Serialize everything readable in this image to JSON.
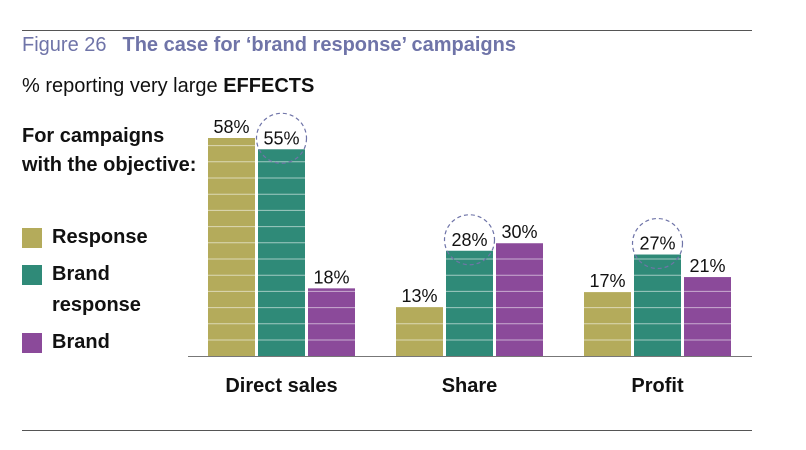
{
  "header": {
    "figure_label": "Figure 26",
    "title": "The case for ‘brand response’ campaigns",
    "subtitle_prefix": "% reporting very large ",
    "subtitle_bold": "EFFECTS"
  },
  "legend": {
    "title": "For campaigns with the objective:",
    "items": [
      {
        "label": "Response",
        "color": "#b4ab5b"
      },
      {
        "label": "Brand response",
        "color": "#2f8a78"
      },
      {
        "label": "Brand",
        "color": "#8b4a9a"
      }
    ]
  },
  "chart_data": {
    "type": "bar",
    "title": "The case for ‘brand response’ campaigns",
    "ylabel": "% reporting very large EFFECTS",
    "categories": [
      "Direct sales",
      "Share",
      "Profit"
    ],
    "series": [
      {
        "name": "Response",
        "values": [
          58,
          13,
          17
        ],
        "labels": [
          "58%",
          "13%",
          "17%"
        ],
        "color": "#b4ab5b"
      },
      {
        "name": "Brand response",
        "values": [
          55,
          28,
          27
        ],
        "labels": [
          "55%",
          "28%",
          "27%"
        ],
        "color": "#2f8a78",
        "highlighted": true
      },
      {
        "name": "Brand",
        "values": [
          18,
          30,
          21
        ],
        "labels": [
          "18%",
          "30%",
          "21%"
        ],
        "color": "#8b4a9a"
      }
    ],
    "ylim": [
      0,
      58
    ],
    "grid": false,
    "legend_position": "left"
  }
}
